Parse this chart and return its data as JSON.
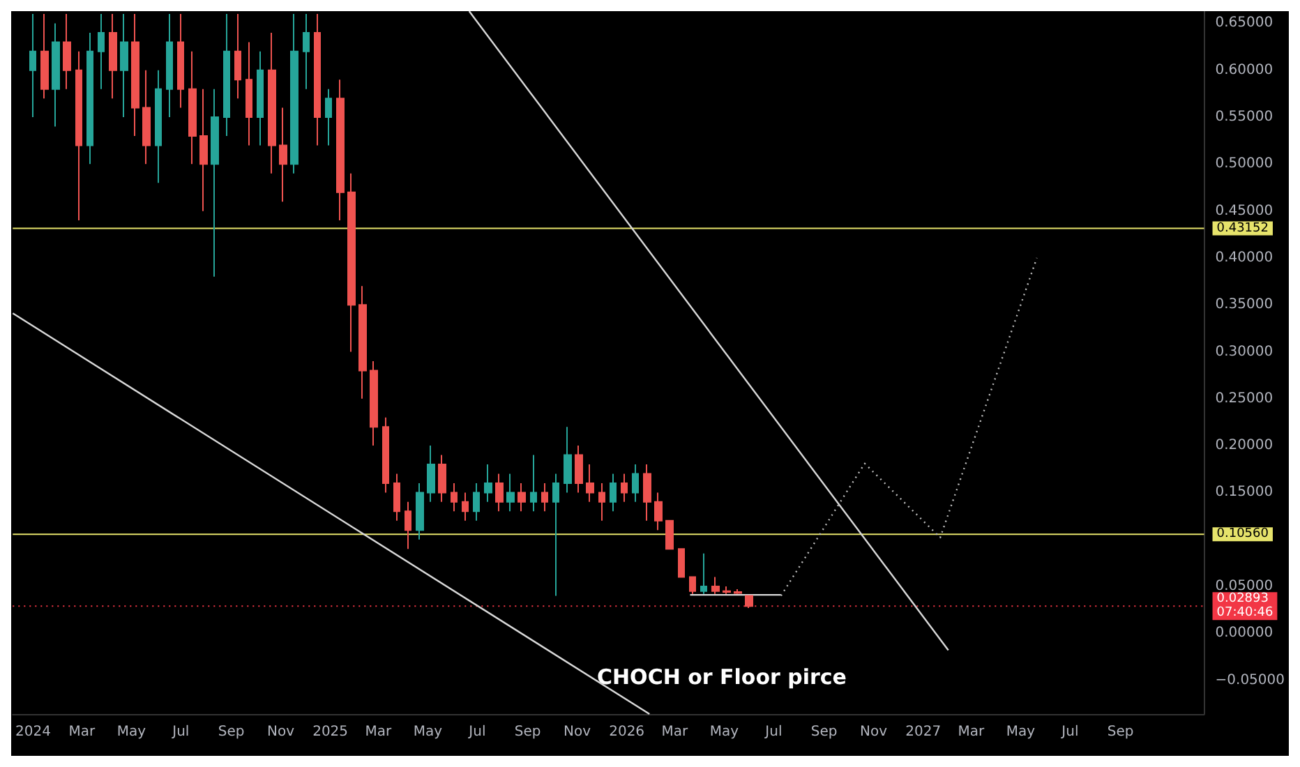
{
  "chart_data": {
    "type": "candlestick",
    "xlim": [
      "2023-12-07",
      "2027-12-13"
    ],
    "ylim": [
      -0.086,
      0.663
    ],
    "xticks": [
      {
        "value": "2024-01-01",
        "label": "2024"
      },
      {
        "value": "2024-03-01",
        "label": "Mar"
      },
      {
        "value": "2024-05-01",
        "label": "May"
      },
      {
        "value": "2024-07-01",
        "label": "Jul"
      },
      {
        "value": "2024-09-01",
        "label": "Sep"
      },
      {
        "value": "2024-11-01",
        "label": "Nov"
      },
      {
        "value": "2025-01-01",
        "label": "2025"
      },
      {
        "value": "2025-03-01",
        "label": "Mar"
      },
      {
        "value": "2025-05-01",
        "label": "May"
      },
      {
        "value": "2025-07-01",
        "label": "Jul"
      },
      {
        "value": "2025-09-01",
        "label": "Sep"
      },
      {
        "value": "2025-11-01",
        "label": "Nov"
      },
      {
        "value": "2026-01-01",
        "label": "2026"
      },
      {
        "value": "2026-03-01",
        "label": "Mar"
      },
      {
        "value": "2026-05-01",
        "label": "May"
      },
      {
        "value": "2026-07-01",
        "label": "Jul"
      },
      {
        "value": "2026-09-01",
        "label": "Sep"
      },
      {
        "value": "2026-11-01",
        "label": "Nov"
      },
      {
        "value": "2027-01-01",
        "label": "2027"
      },
      {
        "value": "2027-03-01",
        "label": "Mar"
      },
      {
        "value": "2027-05-01",
        "label": "May"
      },
      {
        "value": "2027-07-01",
        "label": "Jul"
      },
      {
        "value": "2027-09-01",
        "label": "Sep"
      }
    ],
    "yticks": [
      {
        "value": -0.05,
        "label": "−0.05000"
      },
      {
        "value": 0,
        "label": "0.00000"
      },
      {
        "value": 0.05,
        "label": "0.05000"
      },
      {
        "value": 0.15,
        "label": "0.15000"
      },
      {
        "value": 0.2,
        "label": "0.20000"
      },
      {
        "value": 0.25,
        "label": "0.25000"
      },
      {
        "value": 0.3,
        "label": "0.30000"
      },
      {
        "value": 0.35,
        "label": "0.35000"
      },
      {
        "value": 0.4,
        "label": "0.40000"
      },
      {
        "value": 0.45,
        "label": "0.45000"
      },
      {
        "value": 0.5,
        "label": "0.50000"
      },
      {
        "value": 0.55,
        "label": "0.55000"
      },
      {
        "value": 0.6,
        "label": "0.60000"
      },
      {
        "value": 0.65,
        "label": "0.65000"
      }
    ],
    "grid": false,
    "series": [
      {
        "x": [
          "2024-01-01",
          "2024-01-15",
          "2024-01-29",
          "2024-02-12",
          "2024-02-26",
          "2024-03-11",
          "2024-03-25",
          "2024-04-08",
          "2024-04-22",
          "2024-05-06",
          "2024-05-20",
          "2024-06-03",
          "2024-06-17",
          "2024-07-01",
          "2024-07-15",
          "2024-07-29",
          "2024-08-12",
          "2024-08-26",
          "2024-09-09",
          "2024-09-23",
          "2024-10-07",
          "2024-10-21",
          "2024-11-04",
          "2024-11-18",
          "2024-12-02",
          "2024-12-16",
          "2024-12-30",
          "2025-01-13",
          "2025-01-27",
          "2025-02-10",
          "2025-02-24",
          "2025-03-10",
          "2025-03-24",
          "2025-04-07",
          "2025-04-21",
          "2025-05-05",
          "2025-05-19",
          "2025-06-02",
          "2025-06-16",
          "2025-06-30",
          "2025-07-14",
          "2025-07-28",
          "2025-08-11",
          "2025-08-25",
          "2025-09-08",
          "2025-09-22",
          "2025-10-06",
          "2025-10-20",
          "2025-11-03",
          "2025-11-17",
          "2025-12-01",
          "2025-12-15",
          "2025-12-29",
          "2026-01-12",
          "2026-01-26",
          "2026-02-09",
          "2026-02-23",
          "2026-03-09",
          "2026-03-23",
          "2026-04-06",
          "2026-04-20",
          "2026-05-04",
          "2026-05-18",
          "2026-06-01"
        ],
        "ohlc": [
          [
            0.6,
            0.66,
            0.55,
            0.62
          ],
          [
            0.62,
            0.66,
            0.57,
            0.58
          ],
          [
            0.58,
            0.65,
            0.54,
            0.63
          ],
          [
            0.63,
            0.66,
            0.58,
            0.6
          ],
          [
            0.6,
            0.62,
            0.44,
            0.52
          ],
          [
            0.52,
            0.64,
            0.5,
            0.62
          ],
          [
            0.62,
            0.66,
            0.58,
            0.64
          ],
          [
            0.64,
            0.66,
            0.57,
            0.6
          ],
          [
            0.6,
            0.66,
            0.55,
            0.63
          ],
          [
            0.63,
            0.66,
            0.53,
            0.56
          ],
          [
            0.56,
            0.6,
            0.5,
            0.52
          ],
          [
            0.52,
            0.6,
            0.48,
            0.58
          ],
          [
            0.58,
            0.66,
            0.55,
            0.63
          ],
          [
            0.63,
            0.66,
            0.56,
            0.58
          ],
          [
            0.58,
            0.62,
            0.5,
            0.53
          ],
          [
            0.53,
            0.58,
            0.45,
            0.5
          ],
          [
            0.5,
            0.58,
            0.38,
            0.55
          ],
          [
            0.55,
            0.66,
            0.53,
            0.62
          ],
          [
            0.62,
            0.66,
            0.57,
            0.59
          ],
          [
            0.59,
            0.63,
            0.52,
            0.55
          ],
          [
            0.55,
            0.62,
            0.52,
            0.6
          ],
          [
            0.6,
            0.64,
            0.49,
            0.52
          ],
          [
            0.52,
            0.56,
            0.46,
            0.5
          ],
          [
            0.5,
            0.66,
            0.49,
            0.62
          ],
          [
            0.62,
            0.66,
            0.58,
            0.64
          ],
          [
            0.64,
            0.66,
            0.52,
            0.55
          ],
          [
            0.55,
            0.58,
            0.52,
            0.57
          ],
          [
            0.57,
            0.59,
            0.44,
            0.47
          ],
          [
            0.47,
            0.49,
            0.3,
            0.35
          ],
          [
            0.35,
            0.37,
            0.25,
            0.28
          ],
          [
            0.28,
            0.29,
            0.2,
            0.22
          ],
          [
            0.22,
            0.23,
            0.15,
            0.16
          ],
          [
            0.16,
            0.17,
            0.12,
            0.13
          ],
          [
            0.13,
            0.14,
            0.09,
            0.11
          ],
          [
            0.11,
            0.16,
            0.1,
            0.15
          ],
          [
            0.15,
            0.2,
            0.14,
            0.18
          ],
          [
            0.18,
            0.19,
            0.14,
            0.15
          ],
          [
            0.15,
            0.16,
            0.13,
            0.14
          ],
          [
            0.14,
            0.15,
            0.12,
            0.13
          ],
          [
            0.13,
            0.16,
            0.12,
            0.15
          ],
          [
            0.15,
            0.18,
            0.14,
            0.16
          ],
          [
            0.16,
            0.17,
            0.13,
            0.14
          ],
          [
            0.14,
            0.17,
            0.13,
            0.15
          ],
          [
            0.15,
            0.16,
            0.13,
            0.14
          ],
          [
            0.14,
            0.19,
            0.13,
            0.15
          ],
          [
            0.15,
            0.16,
            0.13,
            0.14
          ],
          [
            0.14,
            0.17,
            0.04,
            0.16
          ],
          [
            0.16,
            0.22,
            0.15,
            0.19
          ],
          [
            0.19,
            0.2,
            0.15,
            0.16
          ],
          [
            0.16,
            0.18,
            0.14,
            0.15
          ],
          [
            0.15,
            0.16,
            0.12,
            0.14
          ],
          [
            0.14,
            0.17,
            0.13,
            0.16
          ],
          [
            0.16,
            0.17,
            0.14,
            0.15
          ],
          [
            0.15,
            0.18,
            0.14,
            0.17
          ],
          [
            0.17,
            0.18,
            0.12,
            0.14
          ],
          [
            0.14,
            0.15,
            0.11,
            0.12
          ],
          [
            0.12,
            0.12,
            0.09,
            0.09
          ],
          [
            0.09,
            0.09,
            0.06,
            0.06
          ],
          [
            0.06,
            0.06,
            0.042,
            0.045
          ],
          [
            0.045,
            0.085,
            0.042,
            0.05
          ],
          [
            0.05,
            0.06,
            0.042,
            0.045
          ],
          [
            0.045,
            0.05,
            0.042,
            0.044
          ],
          [
            0.044,
            0.047,
            0.042,
            0.043
          ],
          [
            0.04,
            0.04,
            0.027,
            0.029
          ]
        ],
        "colors": [
          "#26a69a",
          "#ef5350",
          "#26a69a",
          "#ef5350",
          "#ef5350",
          "#26a69a",
          "#26a69a",
          "#ef5350",
          "#26a69a",
          "#ef5350",
          "#ef5350",
          "#26a69a",
          "#26a69a",
          "#ef5350",
          "#ef5350",
          "#ef5350",
          "#26a69a",
          "#26a69a",
          "#ef5350",
          "#ef5350",
          "#26a69a",
          "#ef5350",
          "#ef5350",
          "#26a69a",
          "#26a69a",
          "#ef5350",
          "#26a69a",
          "#ef5350",
          "#ef5350",
          "#ef5350",
          "#ef5350",
          "#ef5350",
          "#ef5350",
          "#ef5350",
          "#26a69a",
          "#26a69a",
          "#ef5350",
          "#ef5350",
          "#ef5350",
          "#26a69a",
          "#26a69a",
          "#ef5350",
          "#26a69a",
          "#ef5350",
          "#26a69a",
          "#ef5350",
          "#26a69a",
          "#26a69a",
          "#ef5350",
          "#ef5350",
          "#ef5350",
          "#26a69a",
          "#ef5350",
          "#26a69a",
          "#ef5350",
          "#ef5350",
          "#ef5350",
          "#ef5350",
          "#ef5350",
          "#26a69a",
          "#ef5350",
          "#ef5350",
          "#ef5350",
          "#ef5350"
        ]
      },
      {
        "type": "line",
        "color": "#d9d9d9",
        "line_style": "solid",
        "x": [
          "2023-12-07",
          "2026-01-29"
        ],
        "values": [
          0.341,
          -0.086
        ]
      },
      {
        "type": "line",
        "color": "#d9d9d9",
        "line_style": "solid",
        "x": [
          "2025-06-21",
          "2027-02-01"
        ],
        "values": [
          0.663,
          -0.018
        ]
      },
      {
        "type": "line",
        "color": "#d9d9d9",
        "line_style": "solid",
        "x": [
          "2026-03-20",
          "2026-07-10"
        ],
        "values": [
          0.041,
          0.041
        ]
      },
      {
        "type": "line",
        "color": "#bdbdbd",
        "line_style": "dotted",
        "x": [
          "2026-07-10",
          "2026-10-21",
          "2027-01-22",
          "2027-05-21"
        ],
        "values": [
          0.04,
          0.181,
          0.102,
          0.4
        ]
      }
    ],
    "ref_lines": [
      {
        "axis": "y",
        "value": 0.43152,
        "label": "0.43152",
        "color": "#e6e36b",
        "line_style": "solid"
      },
      {
        "axis": "y",
        "value": 0.1056,
        "label": "0.10560",
        "color": "#e6e36b",
        "line_style": "solid"
      },
      {
        "axis": "y",
        "value": 0.02893,
        "label": "0.02893\n07:40:46",
        "color": "#f23645",
        "line_style": "dotted"
      }
    ],
    "annotations": [
      "CHOCH or Floor pirce"
    ]
  }
}
